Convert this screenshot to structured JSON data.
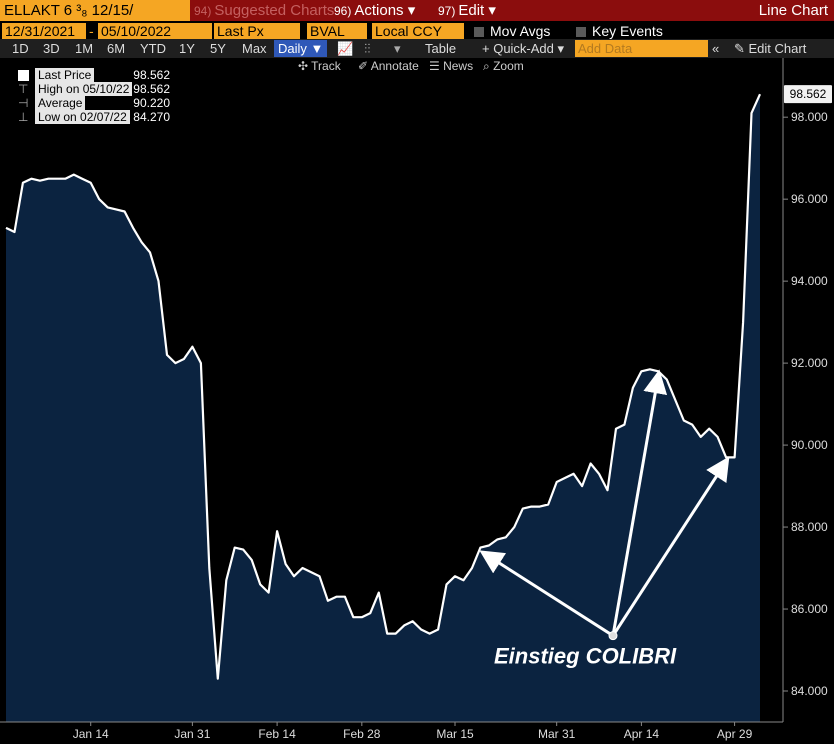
{
  "toolbar": {
    "ticker": "ELLAKT 6 ³₈ 12/15/",
    "suggested_num": "94)",
    "suggested": "Suggested Charts",
    "actions_num": "96)",
    "actions": "Actions ▾",
    "edit_num": "97)",
    "edit": "Edit ▾",
    "chart_title": "Line Chart"
  },
  "controls": {
    "start_date": "12/31/2021",
    "end_date": "05/10/2022",
    "field": "Last Px",
    "source": "BVAL",
    "currency": "Local CCY",
    "mov_avgs": "Mov Avgs",
    "key_events": "Key Events"
  },
  "periods": [
    "1D",
    "3D",
    "1M",
    "6M",
    "YTD",
    "1Y",
    "5Y",
    "Max"
  ],
  "view": {
    "frequency": "Daily ▼",
    "table": "Table",
    "quick_add": "+ Quick-Add ▾",
    "add_data_placeholder": "Add Data",
    "edit_chart": "Edit Chart"
  },
  "tools": [
    "Track",
    "Annotate",
    "News",
    "Zoom"
  ],
  "legend": {
    "last_price_label": "Last Price",
    "last_price": "98.562",
    "high_label": "High on 05/10/22",
    "high": "98.562",
    "average_label": "Average",
    "average": "90.220",
    "low_label": "Low on 02/07/22",
    "low": "84.270"
  },
  "colors": {
    "accent": "#f5a623",
    "header": "#8b0d0d",
    "area_fill": "#0b2340",
    "line": "#ffffff",
    "active_tab": "#2f58b8"
  },
  "chart_data": {
    "type": "area",
    "title": "",
    "xlabel": "",
    "ylabel": "",
    "series": [
      {
        "name": "Last Price",
        "values": [
          95.3,
          95.2,
          96.4,
          96.5,
          96.45,
          96.5,
          96.5,
          96.5,
          96.6,
          96.5,
          96.4,
          96.0,
          95.8,
          95.75,
          95.7,
          95.3,
          94.95,
          94.7,
          94.0,
          92.2,
          92.0,
          92.1,
          92.4,
          92.0,
          87.0,
          84.3,
          86.7,
          87.5,
          87.45,
          87.2,
          86.6,
          86.4,
          87.9,
          87.1,
          86.8,
          87.0,
          86.9,
          86.8,
          86.2,
          86.3,
          86.3,
          85.8,
          85.8,
          85.9,
          86.4,
          85.4,
          85.4,
          85.6,
          85.7,
          85.5,
          85.4,
          85.5,
          86.6,
          86.8,
          86.7,
          87.0,
          87.5,
          87.55,
          87.7,
          87.75,
          88.0,
          88.45,
          88.5,
          88.5,
          88.55,
          89.1,
          89.2,
          89.3,
          89.0,
          89.55,
          89.3,
          88.9,
          90.4,
          90.5,
          91.4,
          91.8,
          91.85,
          91.8,
          91.6,
          91.1,
          90.6,
          90.5,
          90.2,
          90.4,
          90.2,
          89.7,
          89.7,
          93.0,
          98.1,
          98.562
        ]
      }
    ],
    "x_ticks": [
      "Jan 14",
      "Jan 31",
      "Feb 14",
      "Feb 28",
      "Mar 15",
      "Mar 31",
      "Apr 14",
      "Apr 29"
    ],
    "x_tick_index": [
      10,
      22,
      32,
      42,
      53,
      65,
      75,
      86
    ],
    "y_ticks": [
      "84.000",
      "86.000",
      "88.000",
      "90.000",
      "92.000",
      "94.000",
      "96.000",
      "98.000"
    ],
    "ylim": [
      83.0,
      99.2
    ],
    "last_value_label": "98.562",
    "annotation": {
      "text": "Einstieg COLIBRI",
      "targets_index": [
        56,
        77,
        85
      ]
    },
    "grid": false,
    "legend_position": "top-left"
  }
}
